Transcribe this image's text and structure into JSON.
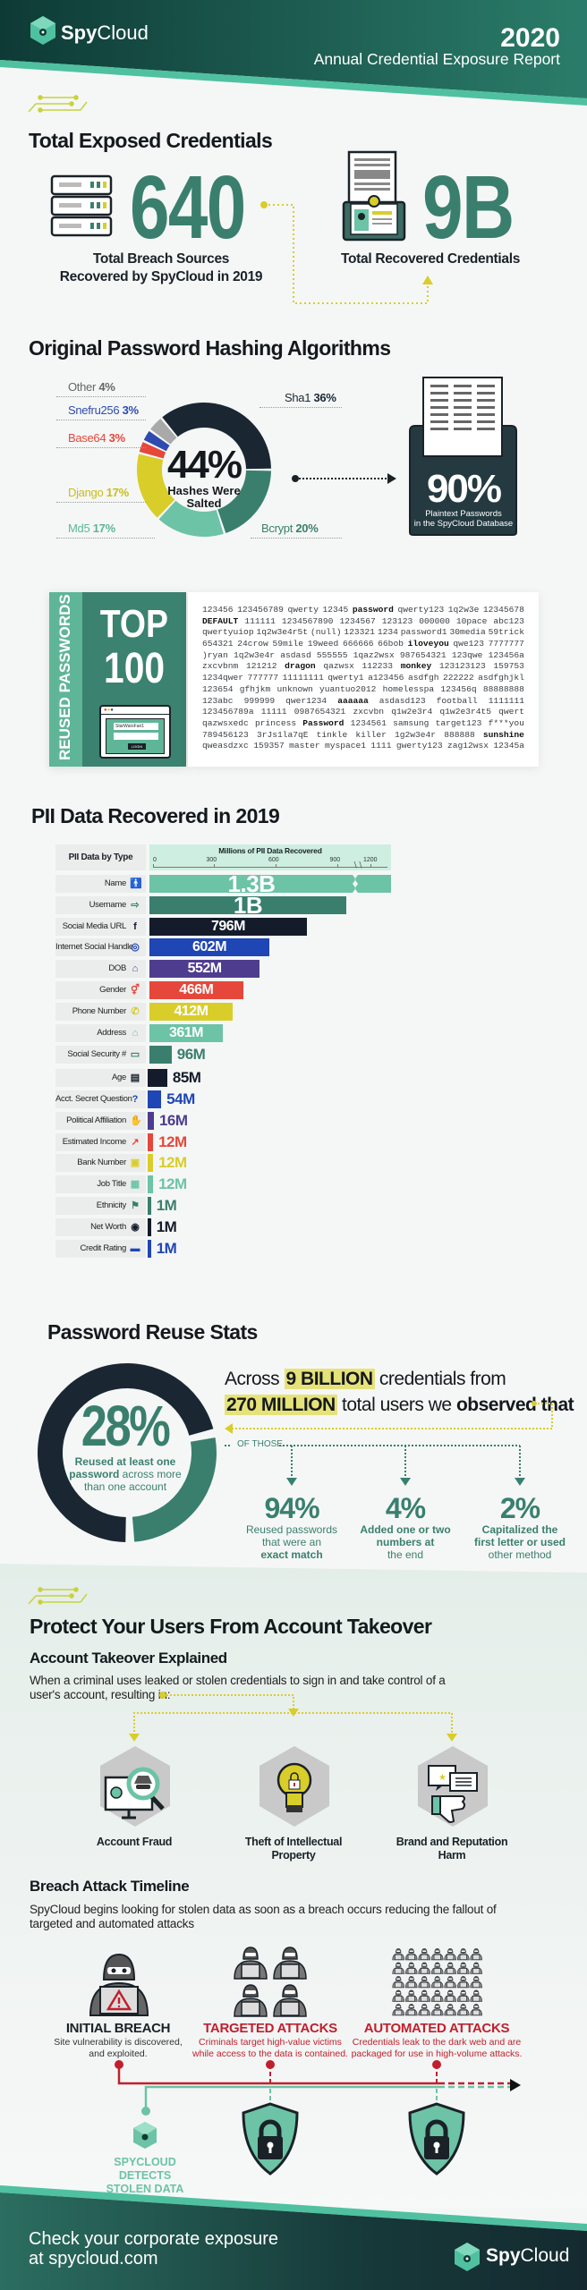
{
  "header": {
    "brand_bold": "Spy",
    "brand_light": "Cloud",
    "year": "2020",
    "subtitle": "Annual Credential Exposure Report"
  },
  "colors": {
    "dark": "#1a2733",
    "teal": "#3a7f6e",
    "light_teal": "#6cc3a5",
    "yellow": "#d9cd2a",
    "red": "#e5473b",
    "blue": "#1f46b5",
    "purple": "#4e3d8f",
    "alert_red": "#c0202e"
  },
  "exposed": {
    "title": "Total Exposed Credentials",
    "breach_value": "640",
    "breach_label_1": "Total Breach Sources",
    "breach_label_2": "Recovered by SpyCloud in 2019",
    "cred_value": "9B",
    "cred_label": "Total Recovered Credentials"
  },
  "hashing": {
    "title": "Original Password Hashing Algorithms",
    "center_value": "44%",
    "center_label_1": "Hashes Were",
    "center_label_2": "Salted",
    "plaintext_value": "90%",
    "plaintext_label_1": "Plaintext Passwords",
    "plaintext_label_2": "in the SpyCloud Database"
  },
  "top100": {
    "side_label": "REUSED PASSWORDS",
    "top": "TOP",
    "count": "100",
    "login_field": "StarWarsFan1",
    "login_button": "LOGIN",
    "bold_words": [
      "password",
      "DEFAULT",
      "iloveyou",
      "dragon",
      "monkey",
      "aaaaaa",
      "Password",
      "sunshine"
    ],
    "lines": [
      "123456 123456789 qwerty 12345 password qwerty123 1q2w3e 12345678",
      "DEFAULT 111111 1234567890 1234567 123123 000000 10pace abc123",
      "qwertyuiop 1q2w3e4r5t (null) 123321 1234 password1 30media 59trick",
      "654321 24crow 59mile 19weed 666666 66bob iloveyou qwe123 7777777",
      ")ryan 1q2w3e4r asdasd 555555 1qaz2wsx 987654321 123qwe 123456a",
      "zxcvbnm 121212 dragon qazwsx 112233 monkey 123123123 159753",
      "1234qwer 777777 11111111 qwerty1 a123456 asdfgh 222222 asdfghjkl",
      "123654 gfhjkm unknown yuantuo2012 homelesspa 123456q 88888888",
      "123abc 999999 qwer1234 aaaaaa asdasd123 football 1111111",
      "123456789a 11111 0987654321 zxcvbn q1w2e3r4 q1w2e3r4t5 qwert",
      "qazwsxedc princess Password 1234561 samsung target123 f***you",
      "789456123 3rJs1la7qE tinkle killer 1g2w3e4r 888888 sunshine",
      "qweasdzxc 159357 master myspace1 1111 gwerty123 zag12wsx 12345a"
    ]
  },
  "pii_title": "PII Data Recovered in 2019",
  "reuse": {
    "title": "Password Reuse Stats",
    "center_value": "28%",
    "center_label_bold": "Reused at least one",
    "center_label_bold_2": "password",
    "center_label_rest": "across more",
    "center_label_3": "than one account",
    "line1_pre": "Across",
    "line1_hl": "9 BILLION",
    "line1_post": "credentials from",
    "line2_hl": "270 MILLION",
    "line2_mid": "total users we",
    "line2_bold": "observed that",
    "of_those": "OF THOSE",
    "stats": [
      {
        "value": "94%",
        "l1": "Reused passwords",
        "l2": "that were an",
        "l3": "exact match"
      },
      {
        "value": "4%",
        "l1": "Added one or two",
        "l2": "numbers at",
        "l3": "the end"
      },
      {
        "value": "2%",
        "l1": "Capitalized the",
        "l2": "first letter or used",
        "l3": "other method"
      }
    ]
  },
  "protect": {
    "title": "Protect Your Users From Account Takeover",
    "ato_title": "Account Takeover Explained",
    "ato_desc_1": "When a criminal uses leaked or stolen credentials to sign in and take control of a",
    "ato_desc_2": "user's account, resulting in:",
    "outcomes": [
      {
        "l1": "Account Fraud",
        "l2": ""
      },
      {
        "l1": "Theft of Intellectual",
        "l2": "Property"
      },
      {
        "l1": "Brand and Reputation",
        "l2": "Harm"
      }
    ],
    "timeline_title": "Breach Attack Timeline",
    "timeline_desc_1": "SpyCloud begins looking for stolen data as soon as a breach occurs reducing the fallout of",
    "timeline_desc_2": "targeted and automated attacks",
    "stages": [
      {
        "title": "INITIAL BREACH",
        "d1": "Site vulnerability is discovered,",
        "d2": "and exploited."
      },
      {
        "title": "TARGETED ATTACKS",
        "d1": "Criminals target high-value victims",
        "d2": "while access to the data is contained."
      },
      {
        "title": "AUTOMATED ATTACKS",
        "d1": "Credentials leak to the dark web and are",
        "d2": "packaged for use in high-volume attacks."
      }
    ],
    "detect_1": "SPYCLOUD DETECTS",
    "detect_2": "STOLEN DATA"
  },
  "footer": {
    "cta_1": "Check your corporate exposure",
    "cta_2": "at spycloud.com",
    "brand_bold": "Spy",
    "brand_light": "Cloud"
  },
  "chart_data": [
    {
      "type": "bar",
      "orientation": "horizontal",
      "title": "Millions of PII Data Recovered",
      "category_header": "PII Data by Type",
      "xticks": [
        "0",
        "300",
        "600",
        "900",
        "1200"
      ],
      "axis_break": true,
      "categories": [
        "Name",
        "Username",
        "Social Media URL",
        "Internet Social Handle",
        "DOB",
        "Gender",
        "Phone Number",
        "Address",
        "Social Security #",
        "Age",
        "Acct. Secret Question",
        "Political Affiliation",
        "Estimated Income",
        "Bank Number",
        "Job Title",
        "Ethnicity",
        "Net Worth",
        "Credit Rating"
      ],
      "values": [
        1300,
        1000,
        796,
        602,
        552,
        466,
        412,
        361,
        96,
        85,
        54,
        16,
        12,
        12,
        12,
        1,
        1,
        1
      ],
      "labels": [
        "1.3B",
        "1B",
        "796M",
        "602M",
        "552M",
        "466M",
        "412M",
        "361M",
        "96M",
        "85M",
        "54M",
        "16M",
        "12M",
        "12M",
        "12M",
        "1M",
        "1M",
        "1M"
      ],
      "icons": [
        "person-icon",
        "login-icon",
        "facebook-icon",
        "instagram-icon",
        "cake-icon",
        "gender-icon",
        "phone-icon",
        "home-icon",
        "ssn-card-icon",
        "id-card-icon",
        "question-icon",
        "hand-icon",
        "chart-up-icon",
        "bank-icon",
        "briefcase-icon",
        "flag-icon",
        "money-icon",
        "credit-card-icon"
      ],
      "colors": [
        "#6cc3a5",
        "#3a7f6e",
        "#141c2b",
        "#1f46b5",
        "#4e3d8f",
        "#e5473b",
        "#d9cd2a",
        "#6cc3a5",
        "#3a7f6e",
        "#141c2b",
        "#1f46b5",
        "#4e3d8f",
        "#e5473b",
        "#d9cd2a",
        "#6cc3a5",
        "#3a7f6e",
        "#141c2b",
        "#1f46b5"
      ]
    },
    {
      "type": "pie",
      "donut": true,
      "slices": [
        {
          "name": "Sha1",
          "value": 36,
          "label": "36%",
          "color": "#1a2733"
        },
        {
          "name": "Bcrypt",
          "value": 20,
          "label": "20%",
          "color": "#3a7f6e"
        },
        {
          "name": "Md5",
          "value": 17,
          "label": "17%",
          "color": "#6cc3a5"
        },
        {
          "name": "Django",
          "value": 17,
          "label": "17%",
          "color": "#d9cd2a"
        },
        {
          "name": "Base64",
          "value": 3,
          "label": "3%",
          "color": "#e5473b"
        },
        {
          "name": "Snefru256",
          "value": 3,
          "label": "3%",
          "color": "#2f4bb0"
        },
        {
          "name": "Other",
          "value": 4,
          "label": "4%",
          "color": "#a9a9a9"
        }
      ]
    },
    {
      "type": "pie",
      "donut": true,
      "slices": [
        {
          "value": 28,
          "color": "#3a7f6e"
        },
        {
          "value": 72,
          "color": "#1a2733"
        }
      ]
    }
  ]
}
